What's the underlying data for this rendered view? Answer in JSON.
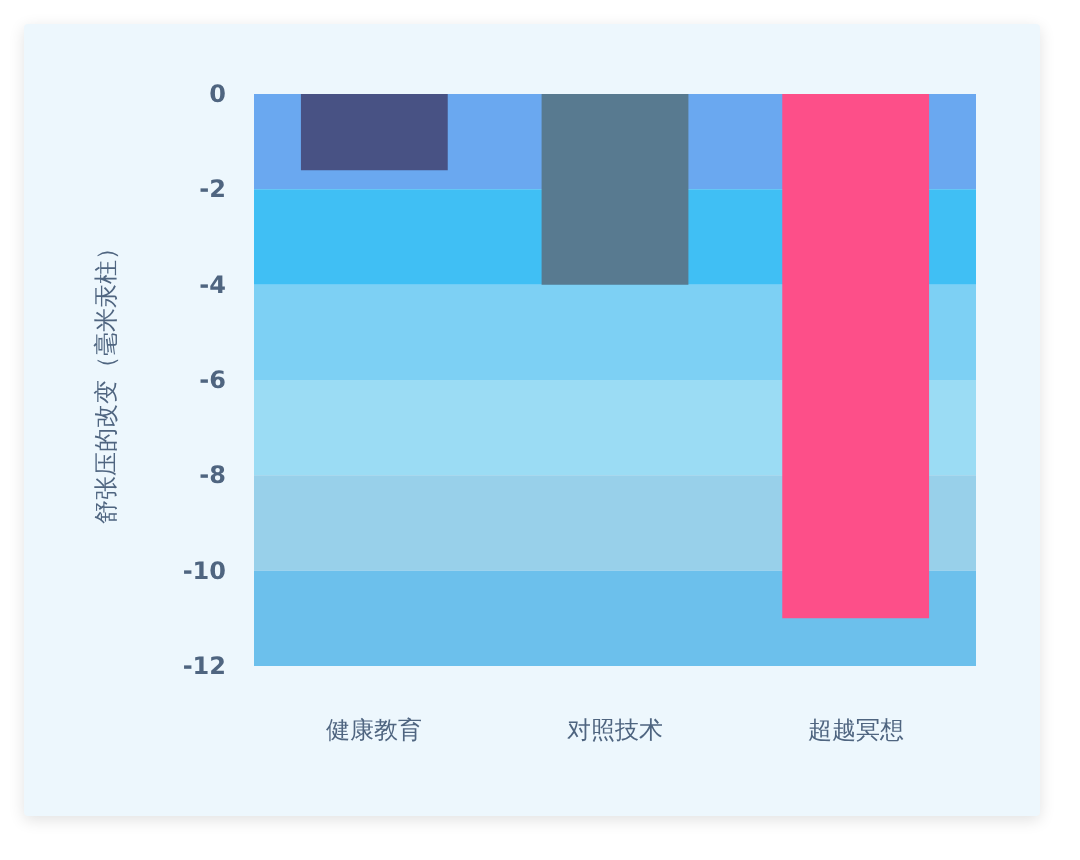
{
  "chart_data": {
    "type": "bar",
    "ylabel": "舒张压的改变（毫米汞柱）",
    "categories": [
      "健康教育",
      "对照技术",
      "超越冥想"
    ],
    "values": [
      -1.6,
      -4,
      -11
    ],
    "colors": [
      "#485284",
      "#587a90",
      "#fd4f89"
    ],
    "ylim": [
      -12,
      0
    ],
    "yticks": [
      0,
      -2,
      -4,
      -6,
      -8,
      -10,
      -12
    ],
    "grid": false,
    "bands": [
      {
        "axis": "y",
        "from": 0,
        "to": -2,
        "color": "#6aa8f0"
      },
      {
        "axis": "y",
        "from": -2,
        "to": -4,
        "color": "#40bff4"
      },
      {
        "axis": "y",
        "from": -4,
        "to": -6,
        "color": "#7dd0f4"
      },
      {
        "axis": "y",
        "from": -6,
        "to": -8,
        "color": "#9bdcf4"
      },
      {
        "axis": "y",
        "from": -8,
        "to": -10,
        "color": "#98d0ea"
      },
      {
        "axis": "y",
        "from": -10,
        "to": -12,
        "color": "#6cc0ec"
      }
    ]
  }
}
